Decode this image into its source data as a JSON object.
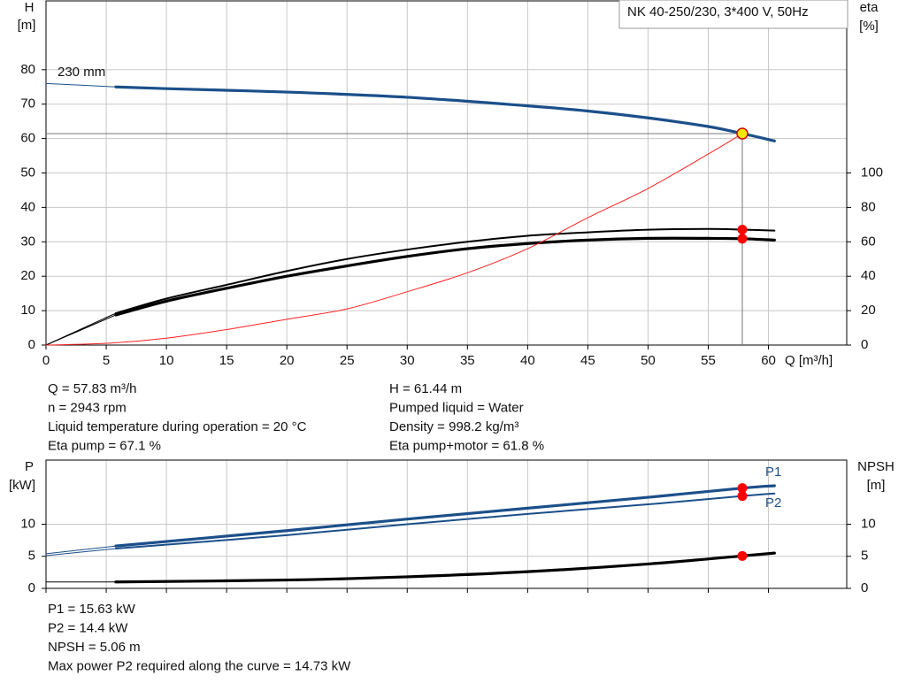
{
  "chart_data": [
    {
      "type": "line",
      "title": "NK 40-250/230, 3*400 V, 50Hz",
      "ylabel": [
        "H",
        "[m]"
      ],
      "y2label": [
        "eta",
        "[%]"
      ],
      "xlabel": "Q [m³/h]",
      "xlim": [
        0,
        66.5
      ],
      "ylim": [
        0,
        100
      ],
      "y2lim": [
        0,
        200
      ],
      "xticks": [
        0,
        5,
        10,
        15,
        20,
        25,
        30,
        35,
        40,
        45,
        50,
        55,
        60
      ],
      "yticks": [
        0,
        10,
        20,
        30,
        40,
        50,
        60,
        70,
        80
      ],
      "y2ticks": [
        0,
        20,
        40,
        60,
        80,
        100
      ],
      "xtick_labels": true,
      "grid": true,
      "series": [
        {
          "name": "230 mm",
          "color": "#1b4f8a",
          "style": "thick",
          "x": [
            5.8,
            10,
            20,
            30,
            40,
            45,
            50,
            55,
            57.83,
            60.5
          ],
          "values": [
            75,
            74.5,
            73.5,
            72,
            69.5,
            68,
            66,
            63.5,
            61.44,
            59.3
          ]
        },
        {
          "color": "#1b4f8a",
          "style": "thin",
          "x": [
            0,
            5.8
          ],
          "values": [
            76,
            75
          ]
        },
        {
          "color": "#000000",
          "style": "medium",
          "axis": "y2",
          "x": [
            5.8,
            10,
            15,
            20,
            25,
            30,
            35,
            40,
            45,
            50,
            55,
            57.83,
            60.5
          ],
          "values": [
            18.5,
            27,
            35,
            43,
            50,
            55.5,
            60,
            63.5,
            65.5,
            67,
            67.5,
            67.1,
            66.5
          ]
        },
        {
          "color": "#000000",
          "style": "thin",
          "axis": "y2",
          "x": [
            0,
            5.8
          ],
          "values": [
            0,
            18.5
          ]
        },
        {
          "color": "#000000",
          "style": "thick",
          "axis": "y2",
          "x": [
            5.8,
            10,
            15,
            20,
            25,
            30,
            35,
            40,
            45,
            50,
            55,
            57.83,
            60.5
          ],
          "values": [
            17.5,
            25.5,
            33,
            40,
            46,
            51.5,
            56,
            59,
            61,
            62,
            62,
            61.8,
            61
          ]
        },
        {
          "color": "#000000",
          "style": "thin",
          "axis": "y2",
          "x": [
            0,
            5.8
          ],
          "values": [
            0,
            17.5
          ]
        },
        {
          "color": "#ff2020",
          "style": "thin",
          "x": [
            0,
            5,
            10,
            15,
            20,
            25,
            30,
            35,
            40,
            45,
            50,
            55,
            57.83
          ],
          "values": [
            0,
            0.5,
            2,
            4.5,
            7.5,
            10.5,
            15.5,
            21,
            28,
            37,
            45.5,
            55.5,
            61.44
          ]
        }
      ],
      "markers": [
        {
          "x": 57.83,
          "value": 61.44,
          "color": "#ffe600",
          "crosshair": true
        },
        {
          "x": 57.83,
          "value": 67.1,
          "axis": "y2",
          "color": "#ff0000"
        },
        {
          "x": 57.83,
          "value": 61.8,
          "axis": "y2",
          "color": "#ff0000"
        }
      ],
      "notes": [
        [
          "Q = 57.83 m³/h",
          "n = 2943 rpm",
          "Liquid temperature during operation = 20 °C",
          "Eta pump = 67.1 %"
        ],
        [
          "H = 61.44 m",
          "Pumped liquid = Water",
          "Density = 998.2 kg/m³",
          "Eta pump+motor = 61.8 %"
        ]
      ]
    },
    {
      "type": "line",
      "ylabel": [
        "P",
        "[kW]"
      ],
      "y2label": [
        "NPSH",
        "[m]"
      ],
      "xlim": [
        0,
        66.5
      ],
      "ylim": [
        0,
        20
      ],
      "y2lim": [
        0,
        20
      ],
      "xticks": [
        0,
        5,
        10,
        15,
        20,
        25,
        30,
        35,
        40,
        45,
        50,
        55,
        60
      ],
      "yticks": [
        0,
        5,
        10
      ],
      "y2ticks": [
        0,
        5,
        10
      ],
      "xtick_labels": false,
      "grid": true,
      "series": [
        {
          "name": "P1",
          "color": "#1b4f8a",
          "style": "thick",
          "x": [
            5.8,
            20,
            30,
            40,
            50,
            57.83,
            60.5
          ],
          "values": [
            6.6,
            9,
            10.8,
            12.5,
            14.2,
            15.63,
            16
          ]
        },
        {
          "color": "#1b4f8a",
          "style": "thin",
          "x": [
            0,
            5.8
          ],
          "values": [
            5.4,
            6.6
          ]
        },
        {
          "name": "P2",
          "color": "#1b4f8a",
          "style": "medium",
          "x": [
            5.8,
            20,
            30,
            40,
            50,
            57.83,
            60.5
          ],
          "values": [
            6.2,
            8.3,
            10,
            11.6,
            13.1,
            14.4,
            14.8
          ]
        },
        {
          "color": "#1b4f8a",
          "style": "thin",
          "x": [
            0,
            5.8
          ],
          "values": [
            5.1,
            6.2
          ]
        },
        {
          "color": "#000000",
          "style": "thick",
          "axis": "y2",
          "x": [
            5.8,
            20,
            30,
            40,
            50,
            57.83,
            60.5
          ],
          "values": [
            1,
            1.3,
            1.8,
            2.6,
            3.8,
            5.06,
            5.5
          ]
        },
        {
          "color": "#000000",
          "style": "thin",
          "axis": "y2",
          "x": [
            0,
            5.8
          ],
          "values": [
            1,
            1
          ]
        }
      ],
      "markers": [
        {
          "x": 57.83,
          "value": 15.63,
          "color": "#ff0000"
        },
        {
          "x": 57.83,
          "value": 14.4,
          "color": "#ff0000"
        },
        {
          "x": 57.83,
          "value": 5.06,
          "axis": "y2",
          "color": "#ff0000"
        }
      ],
      "notes": [
        [
          "P1 = 15.63 kW",
          "P2 = 14.4 kW",
          "NPSH = 5.06 m",
          "Max power P2 required along the curve = 14.73 kW"
        ]
      ]
    }
  ]
}
